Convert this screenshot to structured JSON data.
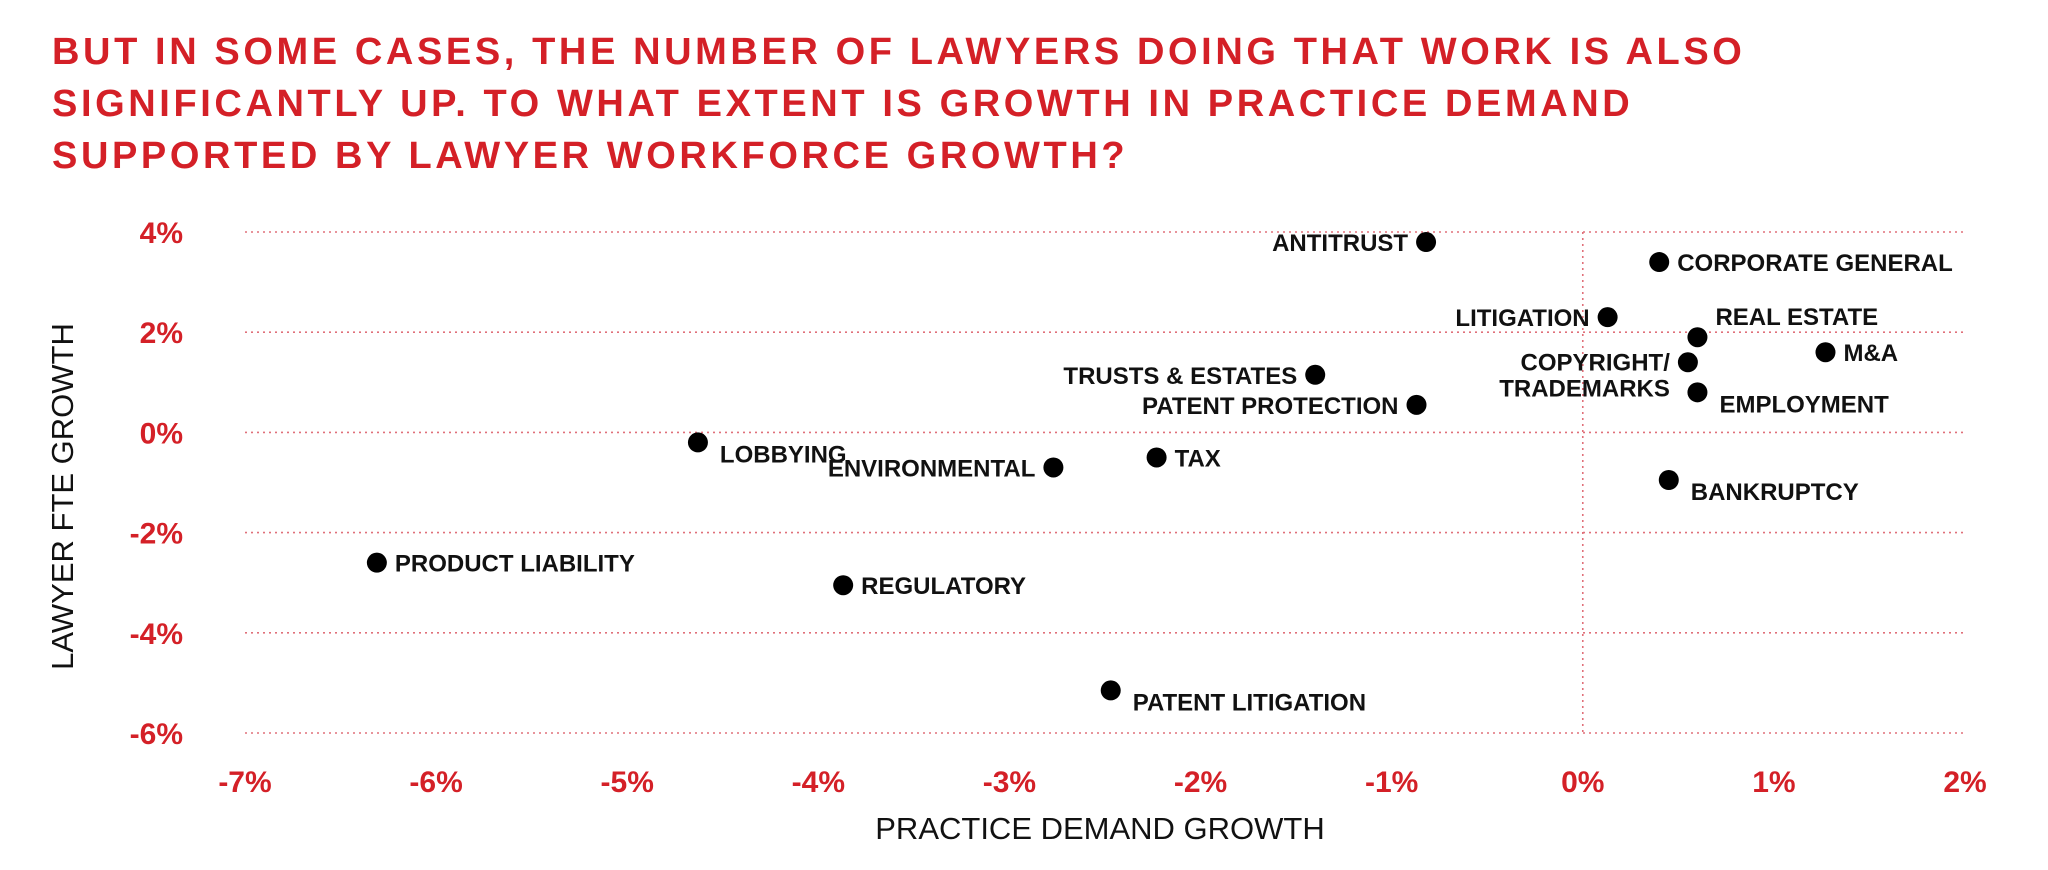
{
  "title_lines": [
    "BUT IN SOME CASES, THE NUMBER OF LAWYERS DOING THAT WORK IS ALSO",
    "SIGNIFICANTLY UP. TO WHAT EXTENT IS GROWTH IN PRACTICE DEMAND",
    "SUPPORTED BY LAWYER WORKFORCE GROWTH?"
  ],
  "colors": {
    "accent": "#d42027",
    "marker": "#000000",
    "text": "#111111",
    "grid": "#e0707a"
  },
  "chart_data": {
    "type": "scatter",
    "title": "BUT IN SOME CASES, THE NUMBER OF LAWYERS DOING THAT WORK IS ALSO SIGNIFICANTLY UP. TO WHAT EXTENT IS GROWTH IN PRACTICE DEMAND SUPPORTED BY LAWYER WORKFORCE GROWTH?",
    "xlabel": "PRACTICE DEMAND GROWTH",
    "ylabel": "LAWYER FTE GROWTH",
    "xlim": [
      -7,
      2
    ],
    "ylim": [
      -6,
      4
    ],
    "x_ticks": [
      -7,
      -6,
      -5,
      -4,
      -3,
      -2,
      -1,
      0,
      1,
      2
    ],
    "y_ticks": [
      4,
      2,
      0,
      -2,
      -4,
      -6
    ],
    "x_tick_labels": [
      "-7%",
      "-6%",
      "-5%",
      "-4%",
      "-3%",
      "-2%",
      "-1%",
      "0%",
      "1%",
      "2%"
    ],
    "y_tick_labels": [
      "4%",
      "2%",
      "0%",
      "-2%",
      "-4%",
      "-6%"
    ],
    "grid": "dotted horizontal lines at y ticks, dotted vertical line at x = 0",
    "points": [
      {
        "label": "ANTITRUST",
        "x": -0.82,
        "y": 3.8,
        "label_side": "left"
      },
      {
        "label": "CORPORATE GENERAL",
        "x": 0.4,
        "y": 3.4,
        "label_side": "right"
      },
      {
        "label": "LITIGATION",
        "x": 0.13,
        "y": 2.3,
        "label_side": "left"
      },
      {
        "label": "REAL ESTATE",
        "x": 0.6,
        "y": 1.9,
        "label_side": "right-up"
      },
      {
        "label": "M&A",
        "x": 1.27,
        "y": 1.6,
        "label_side": "right"
      },
      {
        "label": "COPYRIGHT/ TRADEMARKS",
        "x": 0.55,
        "y": 1.4,
        "label_side": "left"
      },
      {
        "label": "TRUSTS & ESTATES",
        "x": -1.4,
        "y": 1.15,
        "label_side": "left"
      },
      {
        "label": "EMPLOYMENT",
        "x": 0.6,
        "y": 0.8,
        "label_side": "right-down"
      },
      {
        "label": "PATENT PROTECTION",
        "x": -0.87,
        "y": 0.55,
        "label_side": "left"
      },
      {
        "label": "LOBBYING",
        "x": -4.63,
        "y": -0.2,
        "label_side": "right-down"
      },
      {
        "label": "TAX",
        "x": -2.23,
        "y": -0.5,
        "label_side": "right"
      },
      {
        "label": "ENVIRONMENTAL",
        "x": -2.77,
        "y": -0.7,
        "label_side": "left"
      },
      {
        "label": "BANKRUPTCY",
        "x": 0.45,
        "y": -0.95,
        "label_side": "right-down"
      },
      {
        "label": "PRODUCT LIABILITY",
        "x": -6.31,
        "y": -2.6,
        "label_side": "right"
      },
      {
        "label": "REGULATORY",
        "x": -3.87,
        "y": -3.05,
        "label_side": "right"
      },
      {
        "label": "PATENT LITIGATION",
        "x": -2.47,
        "y": -5.15,
        "label_side": "right-down"
      }
    ]
  }
}
